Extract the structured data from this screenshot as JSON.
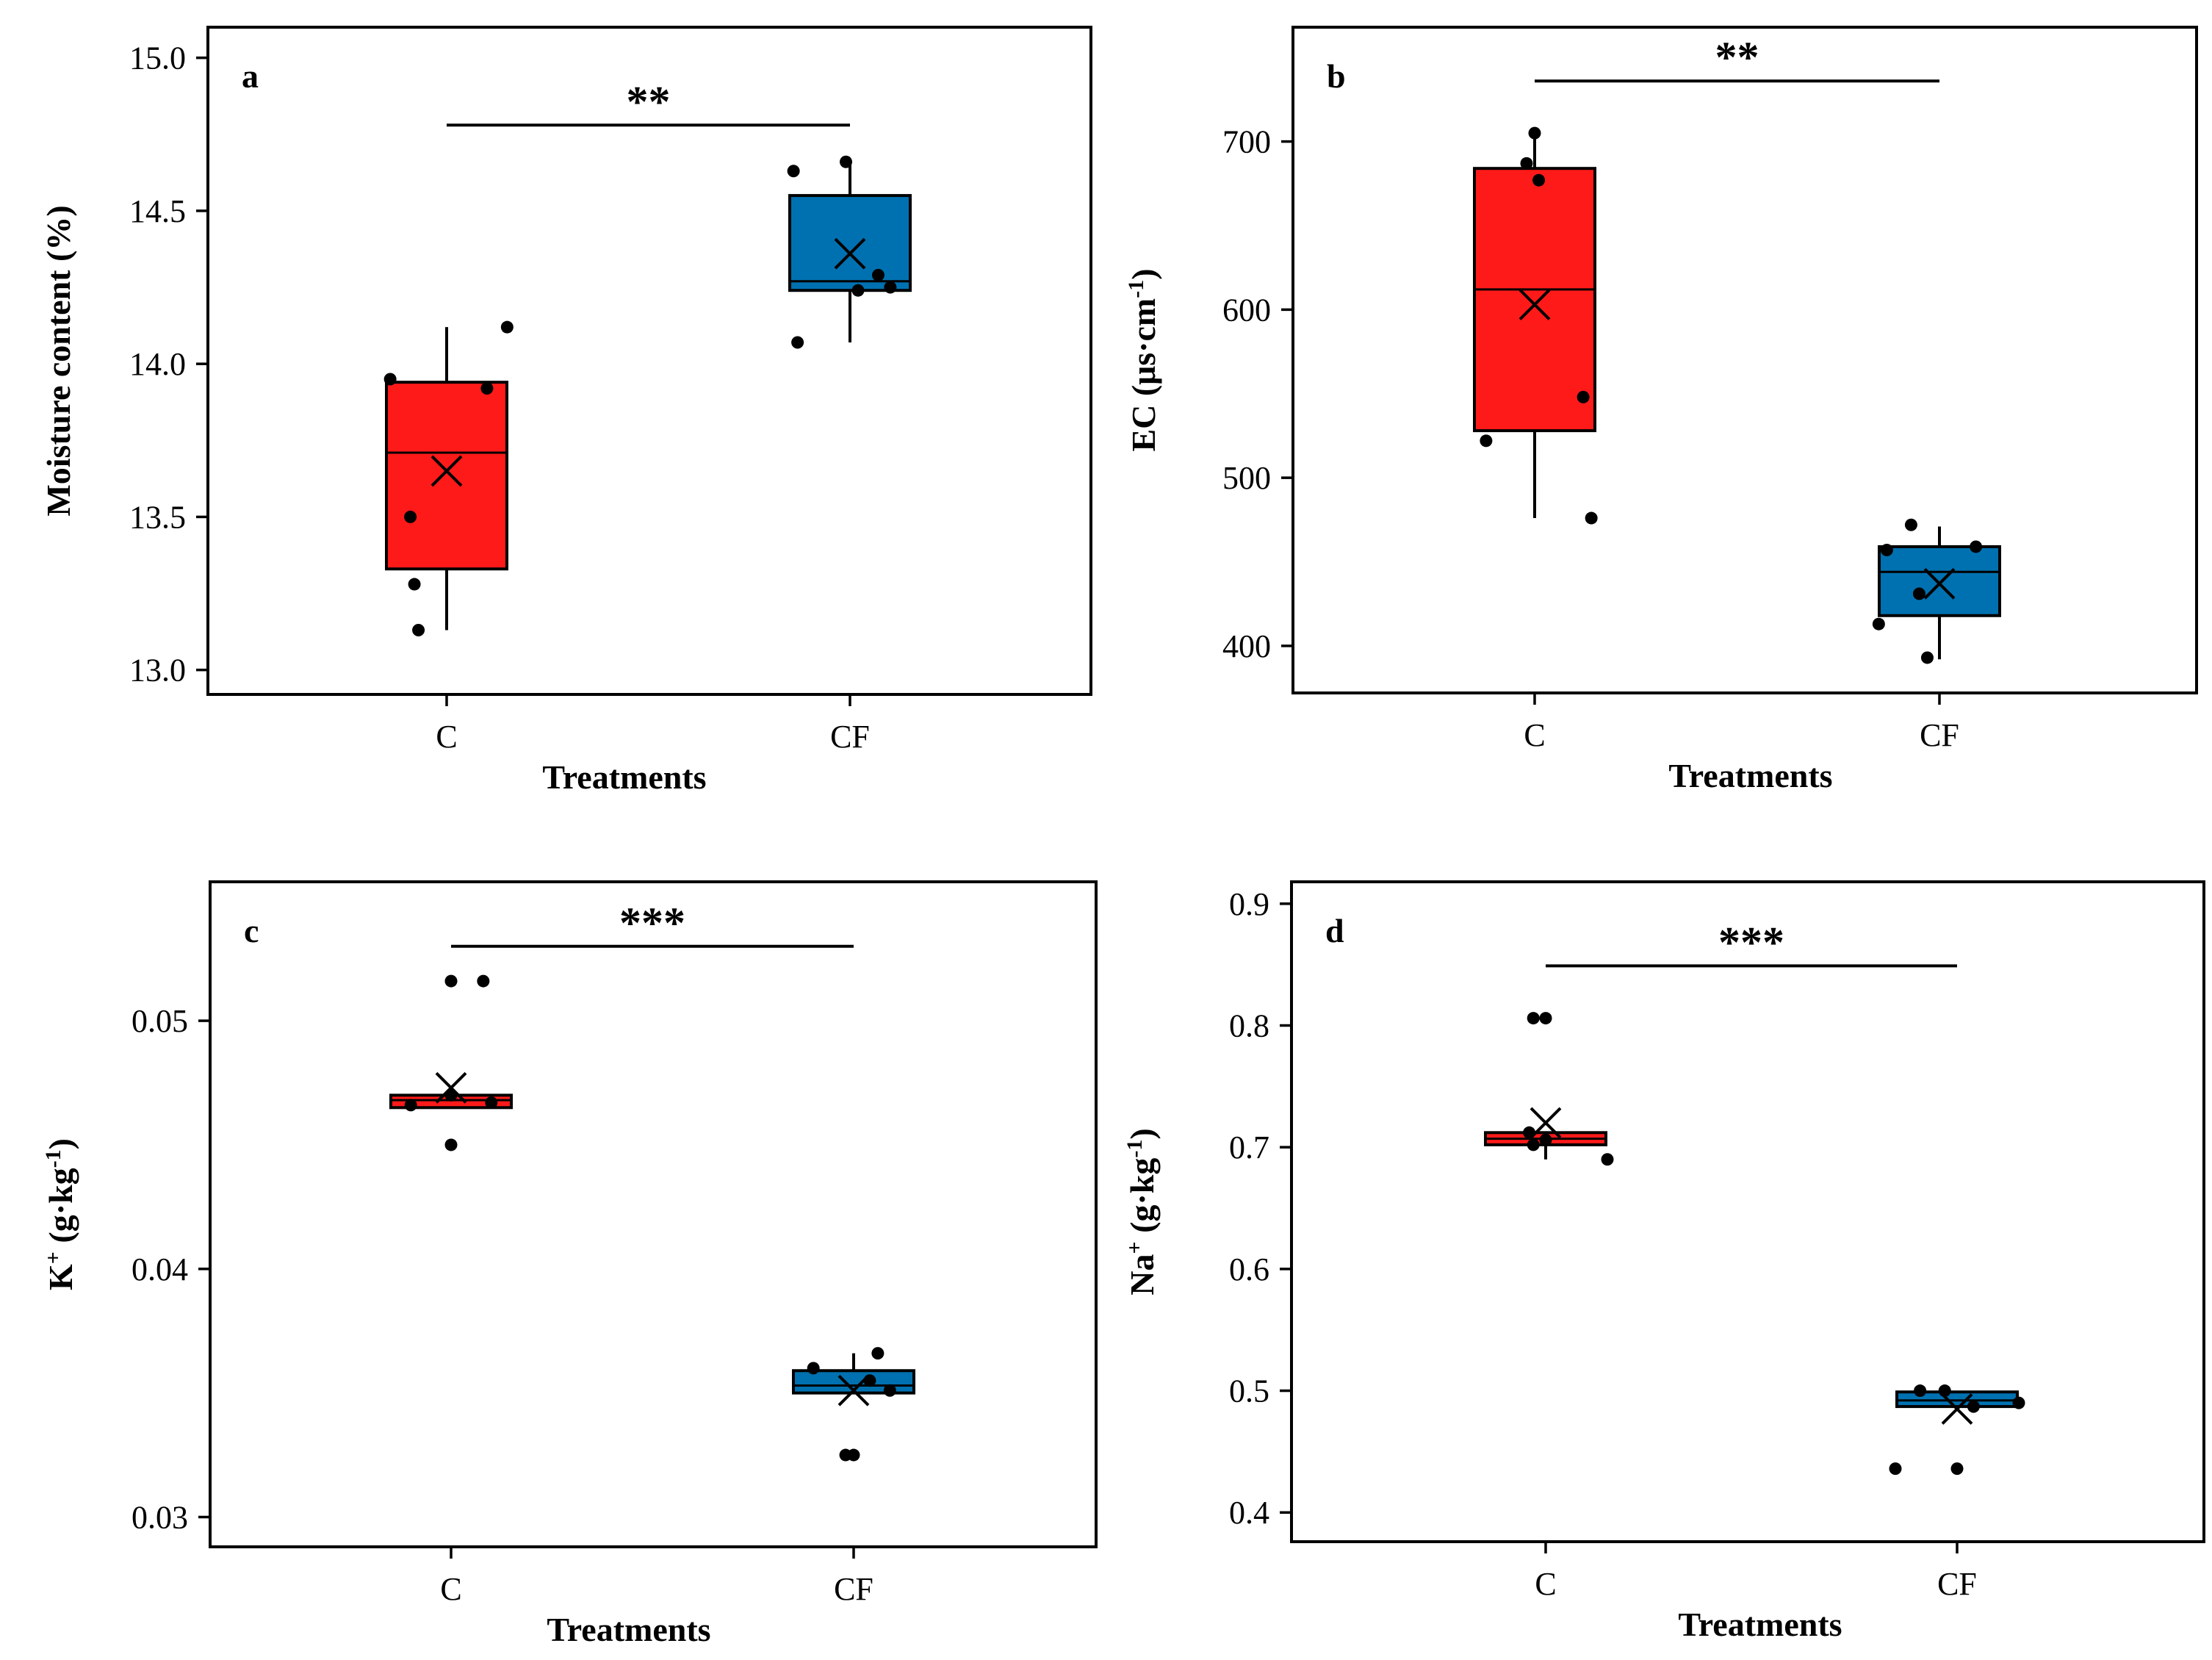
{
  "colors": {
    "C": "#ff1a1a",
    "CF": "#0071b0",
    "ink": "#000000"
  },
  "chart_data": [
    {
      "type": "box",
      "panel_label": "a",
      "xlabel": "Treatments",
      "ylabel": "Moisture content (%)",
      "categories": [
        "C",
        "CF"
      ],
      "ylim": [
        12.92,
        15.1
      ],
      "y_ticks": [
        13.0,
        13.5,
        14.0,
        14.5,
        15.0
      ],
      "y_tick_labels": [
        "13.0",
        "13.5",
        "14.0",
        "14.5",
        "15.0"
      ],
      "significance": "**",
      "significance_y": 14.78,
      "boxes": [
        {
          "category": "C",
          "whisker_low": 13.13,
          "q1": 13.33,
          "median": 13.71,
          "q3": 13.94,
          "whisker_high": 14.12,
          "mean": 13.65,
          "points": [
            [
              -0.14,
              13.95
            ],
            [
              0.1,
              13.92
            ],
            [
              0.15,
              14.12
            ],
            [
              -0.09,
              13.5
            ],
            [
              -0.08,
              13.28
            ],
            [
              -0.07,
              13.13
            ]
          ]
        },
        {
          "category": "CF",
          "whisker_low": 14.07,
          "q1": 14.24,
          "median": 14.27,
          "q3": 14.55,
          "whisker_high": 14.66,
          "mean": 14.36,
          "points": [
            [
              -0.14,
              14.63
            ],
            [
              -0.01,
              14.66
            ],
            [
              0.07,
              14.29
            ],
            [
              0.1,
              14.25
            ],
            [
              0.02,
              14.24
            ],
            [
              -0.13,
              14.07
            ]
          ]
        }
      ]
    },
    {
      "type": "box",
      "panel_label": "b",
      "xlabel": "Treatments",
      "ylabel": "EC (μs·cm",
      "ylabel_sup": "-1",
      "ylabel_tail": ")",
      "categories": [
        "C",
        "CF"
      ],
      "ylim": [
        372,
        768
      ],
      "y_ticks": [
        400,
        500,
        600,
        700
      ],
      "y_tick_labels": [
        "400",
        "500",
        "600",
        "700"
      ],
      "significance": "**",
      "significance_y": 736,
      "boxes": [
        {
          "category": "C",
          "whisker_low": 476,
          "q1": 528,
          "median": 612,
          "q3": 684,
          "whisker_high": 705,
          "mean": 603,
          "points": [
            [
              -0.02,
              687
            ],
            [
              0.0,
              705
            ],
            [
              0.01,
              677
            ],
            [
              -0.12,
              522
            ],
            [
              0.12,
              548
            ],
            [
              0.14,
              476
            ]
          ]
        },
        {
          "category": "CF",
          "whisker_low": 392,
          "q1": 418,
          "median": 444,
          "q3": 459,
          "whisker_high": 471,
          "mean": 437,
          "points": [
            [
              -0.13,
              457
            ],
            [
              -0.07,
              472
            ],
            [
              0.09,
              459
            ],
            [
              -0.15,
              413
            ],
            [
              -0.05,
              431
            ],
            [
              -0.03,
              393
            ]
          ]
        }
      ]
    },
    {
      "type": "box",
      "panel_label": "c",
      "xlabel": "Treatments",
      "ylabel": "K",
      "ylabel_sup": "+",
      "ylabel_tail": " (g·kg",
      "ylabel_sup2": "-1",
      "ylabel_tail2": ")",
      "categories": [
        "C",
        "CF"
      ],
      "ylim": [
        0.0288,
        0.0556
      ],
      "y_ticks": [
        0.03,
        0.04,
        0.05
      ],
      "y_tick_labels": [
        "0.03",
        "0.04",
        "0.05"
      ],
      "significance": "***",
      "significance_y": 0.053,
      "boxes": [
        {
          "category": "C",
          "whisker_low": 0.0465,
          "q1": 0.0465,
          "median": 0.0468,
          "q3": 0.047,
          "whisker_high": 0.047,
          "mean": 0.0473,
          "points": [
            [
              0.0,
              0.0516
            ],
            [
              0.08,
              0.0516
            ],
            [
              -0.1,
              0.0466
            ],
            [
              0.0,
              0.047
            ],
            [
              0.1,
              0.0467
            ],
            [
              0.0,
              0.045
            ]
          ]
        },
        {
          "category": "CF",
          "whisker_low": 0.035,
          "q1": 0.035,
          "median": 0.0353,
          "q3": 0.0359,
          "whisker_high": 0.0366,
          "mean": 0.0351,
          "points": [
            [
              -0.1,
              0.036
            ],
            [
              0.06,
              0.0366
            ],
            [
              0.04,
              0.0355
            ],
            [
              0.09,
              0.0351
            ],
            [
              0.0,
              0.0325
            ],
            [
              -0.02,
              0.0325
            ]
          ]
        }
      ]
    },
    {
      "type": "box",
      "panel_label": "d",
      "xlabel": "Treatments",
      "ylabel": "Na",
      "ylabel_sup": "+",
      "ylabel_tail": " (g·kg",
      "ylabel_sup2": "-1",
      "ylabel_tail2": ")",
      "categories": [
        "C",
        "CF"
      ],
      "ylim": [
        0.376,
        0.918
      ],
      "y_ticks": [
        0.4,
        0.5,
        0.6,
        0.7,
        0.8,
        0.9
      ],
      "y_tick_labels": [
        "0.4",
        "0.5",
        "0.6",
        "0.7",
        "0.8",
        "0.9"
      ],
      "significance": "***",
      "significance_y": 0.849,
      "boxes": [
        {
          "category": "C",
          "whisker_low": 0.69,
          "q1": 0.702,
          "median": 0.707,
          "q3": 0.712,
          "whisker_high": 0.712,
          "mean": 0.72,
          "points": [
            [
              -0.03,
              0.806
            ],
            [
              0.0,
              0.806
            ],
            [
              -0.04,
              0.712
            ],
            [
              -0.03,
              0.702
            ],
            [
              0.0,
              0.706
            ],
            [
              0.15,
              0.69
            ]
          ]
        },
        {
          "category": "CF",
          "whisker_low": 0.487,
          "q1": 0.487,
          "median": 0.492,
          "q3": 0.499,
          "whisker_high": 0.499,
          "mean": 0.485,
          "points": [
            [
              -0.09,
              0.5
            ],
            [
              -0.03,
              0.5
            ],
            [
              0.15,
              0.49
            ],
            [
              0.04,
              0.487
            ],
            [
              -0.15,
              0.436
            ],
            [
              0.0,
              0.436
            ]
          ]
        }
      ]
    }
  ]
}
